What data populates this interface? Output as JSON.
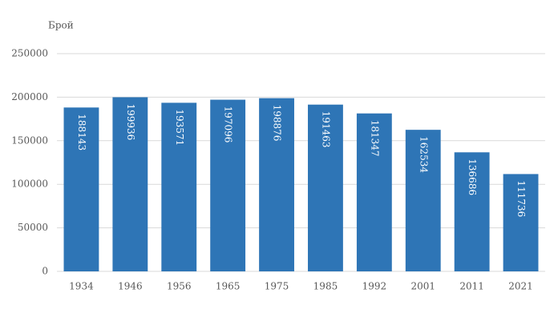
{
  "chart_data": {
    "type": "bar",
    "y_label": "Брой",
    "categories": [
      "1934",
      "1946",
      "1956",
      "1965",
      "1975",
      "1985",
      "1992",
      "2001",
      "2011",
      "2021"
    ],
    "values": [
      188143,
      199936,
      193571,
      197096,
      198876,
      191463,
      181347,
      162534,
      136686,
      111736
    ],
    "color": "#2e75b6",
    "ylim": [
      0,
      250000
    ],
    "yticks": [
      0,
      50000,
      100000,
      150000,
      200000,
      250000
    ],
    "grid": true
  }
}
